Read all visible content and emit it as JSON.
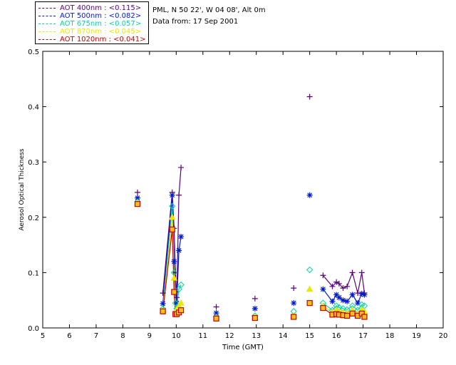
{
  "header": {
    "station": "PML, N 50 22', W 04 08', Alt 0m",
    "date": "Data from: 17 Sep 2001"
  },
  "legend": [
    {
      "label": "AOT  400nm : <0.115>",
      "color": "#5b007f"
    },
    {
      "label": "AOT  500nm : <0.082>",
      "color": "#0018d8"
    },
    {
      "label": "AOT  675nm : <0.057>",
      "color": "#00d8a0"
    },
    {
      "label": "AOT  870nm : <0.045>",
      "color": "#e8e800"
    },
    {
      "label": "AOT 1020nm : <0.041>",
      "color": "#c80000"
    }
  ],
  "chart_data": {
    "type": "line",
    "title": "",
    "xlabel": "Time (GMT)",
    "ylabel": "Aerosol Optical Thickness",
    "xlim": [
      5,
      20
    ],
    "ylim": [
      0,
      0.5
    ],
    "xticks": [
      5,
      6,
      7,
      8,
      9,
      10,
      11,
      12,
      13,
      14,
      15,
      16,
      17,
      18,
      19,
      20
    ],
    "yticks": [
      0.0,
      0.1,
      0.2,
      0.3,
      0.4,
      0.5
    ],
    "ytick_labels": [
      "0.0",
      "0.1",
      "0.2",
      "0.3",
      "0.4",
      "0.5"
    ],
    "series": [
      {
        "name": "AOT 400nm",
        "color": "#5b007f",
        "marker": "plus",
        "x": [
          8.55,
          9.5,
          9.85,
          9.92,
          9.97,
          10.02,
          10.1,
          10.18,
          11.5,
          12.95,
          14.4,
          15.0,
          15.5,
          15.85,
          16.0,
          16.1,
          16.25,
          16.4,
          16.6,
          16.8,
          16.95,
          17.05
        ],
        "y": [
          0.245,
          0.063,
          0.245,
          0.18,
          0.1,
          0.055,
          0.24,
          0.29,
          0.038,
          0.053,
          0.072,
          0.418,
          0.095,
          0.075,
          0.083,
          0.08,
          0.072,
          0.075,
          0.1,
          0.063,
          0.1,
          0.063
        ]
      },
      {
        "name": "AOT 500nm",
        "color": "#0018d8",
        "marker": "asterisk",
        "x": [
          8.55,
          9.5,
          9.85,
          9.92,
          9.97,
          10.02,
          10.1,
          10.18,
          11.5,
          12.95,
          14.4,
          15.0,
          15.5,
          15.85,
          16.0,
          16.1,
          16.25,
          16.4,
          16.6,
          16.8,
          16.95,
          17.05
        ],
        "y": [
          0.235,
          0.044,
          0.24,
          0.12,
          0.065,
          0.045,
          0.14,
          0.165,
          0.027,
          0.035,
          0.045,
          0.24,
          0.07,
          0.048,
          0.06,
          0.055,
          0.05,
          0.048,
          0.06,
          0.045,
          0.062,
          0.06
        ]
      },
      {
        "name": "AOT 675nm",
        "color": "#00d8a0",
        "marker": "diamond",
        "x": [
          8.55,
          9.5,
          9.85,
          9.92,
          9.97,
          10.02,
          10.1,
          10.18,
          11.5,
          12.95,
          14.4,
          15.0,
          15.5,
          15.85,
          16.0,
          16.1,
          16.25,
          16.4,
          16.6,
          16.8,
          16.95,
          17.05
        ],
        "y": [
          0.228,
          0.035,
          0.22,
          0.1,
          0.045,
          0.035,
          0.07,
          0.078,
          0.02,
          0.022,
          0.03,
          0.105,
          0.045,
          0.032,
          0.04,
          0.037,
          0.035,
          0.033,
          0.04,
          0.032,
          0.042,
          0.04
        ]
      },
      {
        "name": "AOT 870nm",
        "color": "#e8e800",
        "marker": "triangle",
        "x": [
          8.55,
          9.5,
          9.85,
          9.92,
          9.97,
          10.02,
          10.1,
          10.18,
          11.5,
          12.95,
          14.4,
          15.0,
          15.5,
          15.85,
          16.0,
          16.1,
          16.25,
          16.4,
          16.6,
          16.8,
          16.95,
          17.05
        ],
        "y": [
          0.226,
          0.032,
          0.2,
          0.09,
          0.03,
          0.03,
          0.04,
          0.045,
          0.018,
          0.02,
          0.022,
          0.07,
          0.04,
          0.028,
          0.032,
          0.03,
          0.028,
          0.027,
          0.032,
          0.026,
          0.033,
          0.03
        ]
      },
      {
        "name": "AOT 1020nm",
        "color": "#c80000",
        "marker": "square",
        "x": [
          8.55,
          9.5,
          9.85,
          9.92,
          9.97,
          10.02,
          10.1,
          10.18,
          11.5,
          12.95,
          14.4,
          15.0,
          15.5,
          15.85,
          16.0,
          16.1,
          16.25,
          16.4,
          16.6,
          16.8,
          16.95,
          17.05
        ],
        "y": [
          0.224,
          0.03,
          0.178,
          0.065,
          0.025,
          0.025,
          0.028,
          0.032,
          0.017,
          0.018,
          0.02,
          0.045,
          0.036,
          0.024,
          0.025,
          0.024,
          0.023,
          0.022,
          0.026,
          0.022,
          0.026,
          0.02
        ]
      }
    ]
  }
}
